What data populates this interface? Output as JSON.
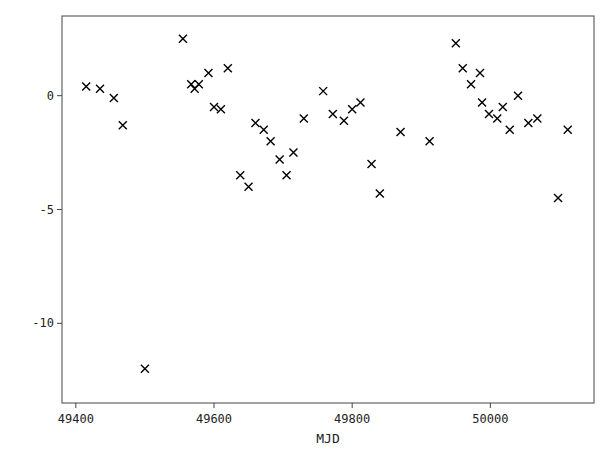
{
  "chart_data": {
    "type": "scatter",
    "x_label": "MJD",
    "x": [
      49415,
      49435,
      49455,
      49468,
      49500,
      49555,
      49567,
      49572,
      49578,
      49592,
      49600,
      49610,
      49620,
      49638,
      49650,
      49660,
      49672,
      49682,
      49695,
      49705,
      49715,
      49730,
      49758,
      49772,
      49788,
      49800,
      49812,
      49828,
      49840,
      49870,
      49912,
      49950,
      49960,
      49972,
      49985,
      49988,
      49998,
      50010,
      50018,
      50028,
      50040,
      50055,
      50068,
      50098,
      50112
    ],
    "values": [
      0.4,
      0.3,
      -0.1,
      -1.3,
      -12.0,
      2.5,
      0.5,
      0.3,
      0.5,
      1.0,
      -0.5,
      -0.6,
      1.2,
      -3.5,
      -4.0,
      -1.2,
      -1.5,
      -2.0,
      -2.8,
      -3.5,
      -2.5,
      -1.0,
      0.2,
      -0.8,
      -1.1,
      -0.6,
      -0.3,
      -3.0,
      -4.3,
      -1.6,
      -2.0,
      2.3,
      1.2,
      0.5,
      1.0,
      -0.3,
      -0.8,
      -1.0,
      -0.5,
      -1.5,
      0.0,
      -1.2,
      -1.0,
      -4.5,
      -1.5
    ],
    "xlim": [
      49380,
      50150
    ],
    "ylim": [
      -13.5,
      3.5
    ],
    "xticks": [
      49400,
      49600,
      49800,
      50000
    ],
    "yticks": [
      0,
      -5,
      -10
    ],
    "color": "black",
    "marker": "x"
  }
}
